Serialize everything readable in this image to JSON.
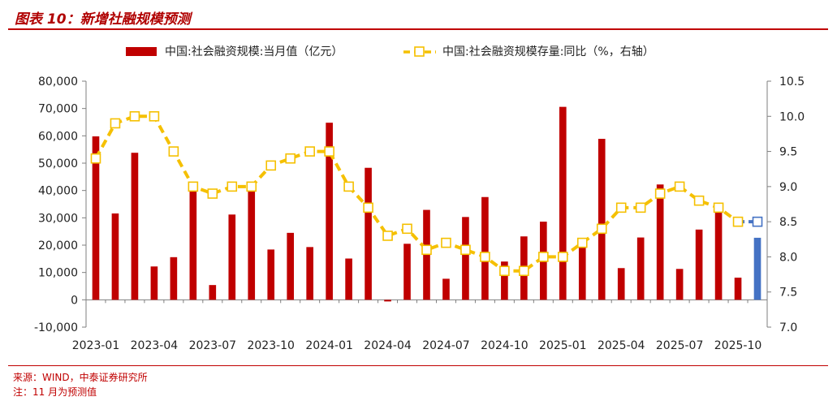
{
  "header": {
    "title": "图表 10：新增社融规模预测"
  },
  "footer": {
    "source": "来源：WIND，中泰证券研究所",
    "note": "注：11 月为预测值"
  },
  "colors": {
    "bar": "#c00000",
    "bar_forecast": "#4472c4",
    "line": "#f5c000",
    "line_forecast": "#4472c4",
    "title": "#b00000"
  },
  "chart_data": {
    "type": "bar",
    "x": [
      "2023-01",
      "2023-02",
      "2023-03",
      "2023-04",
      "2023-05",
      "2023-06",
      "2023-07",
      "2023-08",
      "2023-09",
      "2023-10",
      "2023-11",
      "2023-12",
      "2024-01",
      "2024-02",
      "2024-03",
      "2024-04",
      "2024-05",
      "2024-06",
      "2024-07",
      "2024-08",
      "2024-09",
      "2024-10",
      "2024-11",
      "2024-12",
      "2025-01",
      "2025-02",
      "2025-03",
      "2025-04",
      "2025-05",
      "2025-06",
      "2025-07",
      "2025-08",
      "2025-09",
      "2025-10",
      "2025-11"
    ],
    "x_tick_labels": [
      "2023-01",
      "2023-04",
      "2023-07",
      "2023-10",
      "2024-01",
      "2024-04",
      "2024-07",
      "2024-10",
      "2025-01",
      "2025-04",
      "2025-07",
      "2025-10"
    ],
    "series": [
      {
        "name": "中国:社会融资规模:当月值（亿元）",
        "type": "bar",
        "axis": "left",
        "values": [
          59800,
          31600,
          53800,
          12200,
          15600,
          42300,
          5400,
          31200,
          41300,
          18400,
          24500,
          19300,
          64800,
          15100,
          48300,
          -600,
          20500,
          32900,
          7700,
          30300,
          37600,
          14000,
          23200,
          28600,
          70600,
          22400,
          58900,
          11600,
          22800,
          42200,
          11300,
          25700,
          35300,
          8100,
          22700
        ]
      },
      {
        "name": "中国:社会融资规模存量:同比（%，右轴）",
        "type": "line",
        "axis": "right",
        "values": [
          9.4,
          9.9,
          10.0,
          10.0,
          9.5,
          9.0,
          8.9,
          9.0,
          9.0,
          9.3,
          9.4,
          9.5,
          9.5,
          9.0,
          8.7,
          8.3,
          8.4,
          8.1,
          8.2,
          8.1,
          8.0,
          7.8,
          7.8,
          8.0,
          8.0,
          8.2,
          8.4,
          8.7,
          8.7,
          8.9,
          9.0,
          8.8,
          8.7,
          8.5,
          8.5
        ]
      }
    ],
    "forecast_index": 34,
    "y_left": {
      "min": -10000,
      "max": 80000,
      "step": 10000,
      "tick_labels": [
        "-10,000",
        "0",
        "10,000",
        "20,000",
        "30,000",
        "40,000",
        "50,000",
        "60,000",
        "70,000",
        "80,000"
      ]
    },
    "y_right": {
      "min": 7.0,
      "max": 10.5,
      "step": 0.5,
      "tick_labels": [
        "7.0",
        "7.5",
        "8.0",
        "8.5",
        "9.0",
        "9.5",
        "10.0",
        "10.5"
      ]
    },
    "legend_position": "top"
  }
}
